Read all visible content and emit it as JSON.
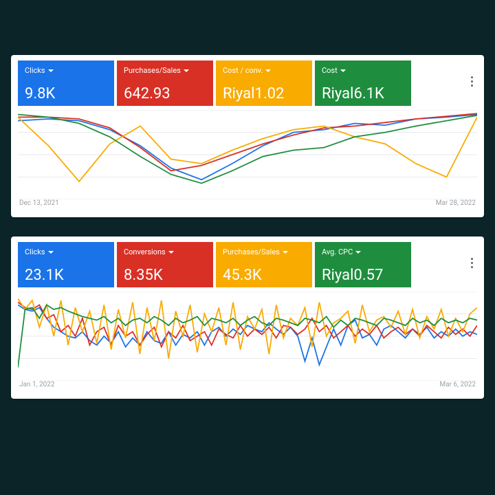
{
  "background_color": "#0a2428",
  "card_bg": "#ffffff",
  "grid_color": "#e8eaed",
  "date_color": "#9aa0a6",
  "cards": [
    {
      "date_start": "Dec 13, 2021",
      "date_end": "Mar 28, 2022",
      "metrics": [
        {
          "label": "Clicks",
          "value": "9.8K",
          "bg": "#1a73e8",
          "series_color": "#1a73e8"
        },
        {
          "label": "Purchases/Sales",
          "value": "642.93",
          "bg": "#d93025",
          "series_color": "#d93025"
        },
        {
          "label": "Cost / conv.",
          "value": "Riyal1.02",
          "bg": "#f9ab00",
          "series_color": "#f9ab00",
          "label_color": "#ffffff"
        },
        {
          "label": "Cost",
          "value": "Riyal6.1K",
          "bg": "#1e8e3e",
          "series_color": "#1e8e3e"
        }
      ],
      "chart": {
        "type": "line",
        "ylim": [
          0,
          100
        ],
        "xlim": [
          0,
          15
        ],
        "grid_rows": 4,
        "line_width": 1.8,
        "series": [
          {
            "color": "#1a73e8",
            "values": [
              88,
              90,
              88,
              78,
              60,
              35,
              22,
              40,
              60,
              75,
              78,
              85,
              83,
              90,
              92,
              95
            ]
          },
          {
            "color": "#d93025",
            "values": [
              92,
              92,
              90,
              80,
              58,
              32,
              38,
              50,
              62,
              72,
              80,
              82,
              86,
              90,
              93,
              96
            ]
          },
          {
            "color": "#f9ab00",
            "values": [
              92,
              60,
              20,
              62,
              82,
              45,
              40,
              55,
              68,
              78,
              82,
              70,
              62,
              40,
              25,
              92
            ]
          },
          {
            "color": "#1e8e3e",
            "values": [
              95,
              92,
              85,
              70,
              48,
              28,
              18,
              32,
              48,
              55,
              58,
              70,
              75,
              82,
              88,
              94
            ]
          }
        ]
      }
    },
    {
      "date_start": "Jan 1, 2022",
      "date_end": "Mar 6, 2022",
      "metrics": [
        {
          "label": "Clicks",
          "value": "23.1K",
          "bg": "#1a73e8",
          "series_color": "#1a73e8"
        },
        {
          "label": "Conversions",
          "value": "8.35K",
          "bg": "#d93025",
          "series_color": "#d93025"
        },
        {
          "label": "Purchases/Sales",
          "value": "45.3K",
          "bg": "#f9ab00",
          "series_color": "#f9ab00"
        },
        {
          "label": "Avg. CPC",
          "value": "Riyal0.57",
          "bg": "#1e8e3e",
          "series_color": "#1e8e3e"
        }
      ],
      "chart": {
        "type": "line",
        "ylim": [
          0,
          100
        ],
        "xlim": [
          0,
          64
        ],
        "grid_rows": 4,
        "line_width": 1.6,
        "series": [
          {
            "color": "#1a73e8",
            "values": [
              85,
              80,
              78,
              82,
              70,
              60,
              55,
              50,
              48,
              55,
              45,
              40,
              50,
              42,
              55,
              38,
              48,
              40,
              55,
              45,
              42,
              55,
              40,
              52,
              48,
              55,
              40,
              55,
              60,
              50,
              58,
              52,
              62,
              58,
              55,
              65,
              58,
              52,
              60,
              50,
              22,
              48,
              18,
              38,
              58,
              40,
              62,
              68,
              48,
              52,
              40,
              58,
              62,
              55,
              48,
              58,
              52,
              60,
              48,
              55,
              50,
              58,
              50,
              55,
              52
            ]
          },
          {
            "color": "#d93025",
            "values": [
              88,
              82,
              80,
              85,
              70,
              74,
              55,
              62,
              50,
              70,
              40,
              55,
              60,
              40,
              62,
              50,
              55,
              40,
              52,
              60,
              38,
              55,
              48,
              62,
              45,
              50,
              55,
              40,
              58,
              52,
              48,
              62,
              50,
              58,
              52,
              60,
              48,
              62,
              60,
              52,
              58,
              70,
              55,
              62,
              48,
              55,
              62,
              50,
              58,
              52,
              62,
              48,
              55,
              60,
              52,
              58,
              50,
              62,
              55,
              48,
              60,
              52,
              58,
              50,
              62
            ]
          },
          {
            "color": "#f9ab00",
            "values": [
              92,
              80,
              90,
              60,
              85,
              50,
              90,
              40,
              82,
              55,
              78,
              42,
              85,
              35,
              80,
              48,
              88,
              30,
              82,
              45,
              90,
              25,
              78,
              50,
              85,
              32,
              75,
              55,
              82,
              40,
              88,
              35,
              72,
              58,
              80,
              30,
              85,
              48,
              70,
              62,
              82,
              38,
              88,
              50,
              65,
              70,
              78,
              42,
              85,
              55,
              68,
              72,
              60,
              78,
              52,
              80,
              48,
              72,
              58,
              80,
              50,
              70,
              55,
              75,
              82
            ]
          },
          {
            "color": "#1e8e3e",
            "values": [
              15,
              80,
              82,
              70,
              85,
              80,
              82,
              78,
              75,
              72,
              70,
              68,
              72,
              65,
              70,
              62,
              68,
              70,
              65,
              72,
              68,
              62,
              70,
              65,
              68,
              72,
              62,
              70,
              68,
              65,
              70,
              62,
              68,
              72,
              65,
              62,
              70,
              68,
              65,
              62,
              70,
              68,
              65,
              72,
              60,
              68,
              62,
              70,
              68,
              65,
              62,
              70,
              68,
              65,
              62,
              70,
              65,
              68,
              62,
              70,
              65,
              68,
              65,
              70,
              68
            ]
          }
        ]
      }
    }
  ]
}
